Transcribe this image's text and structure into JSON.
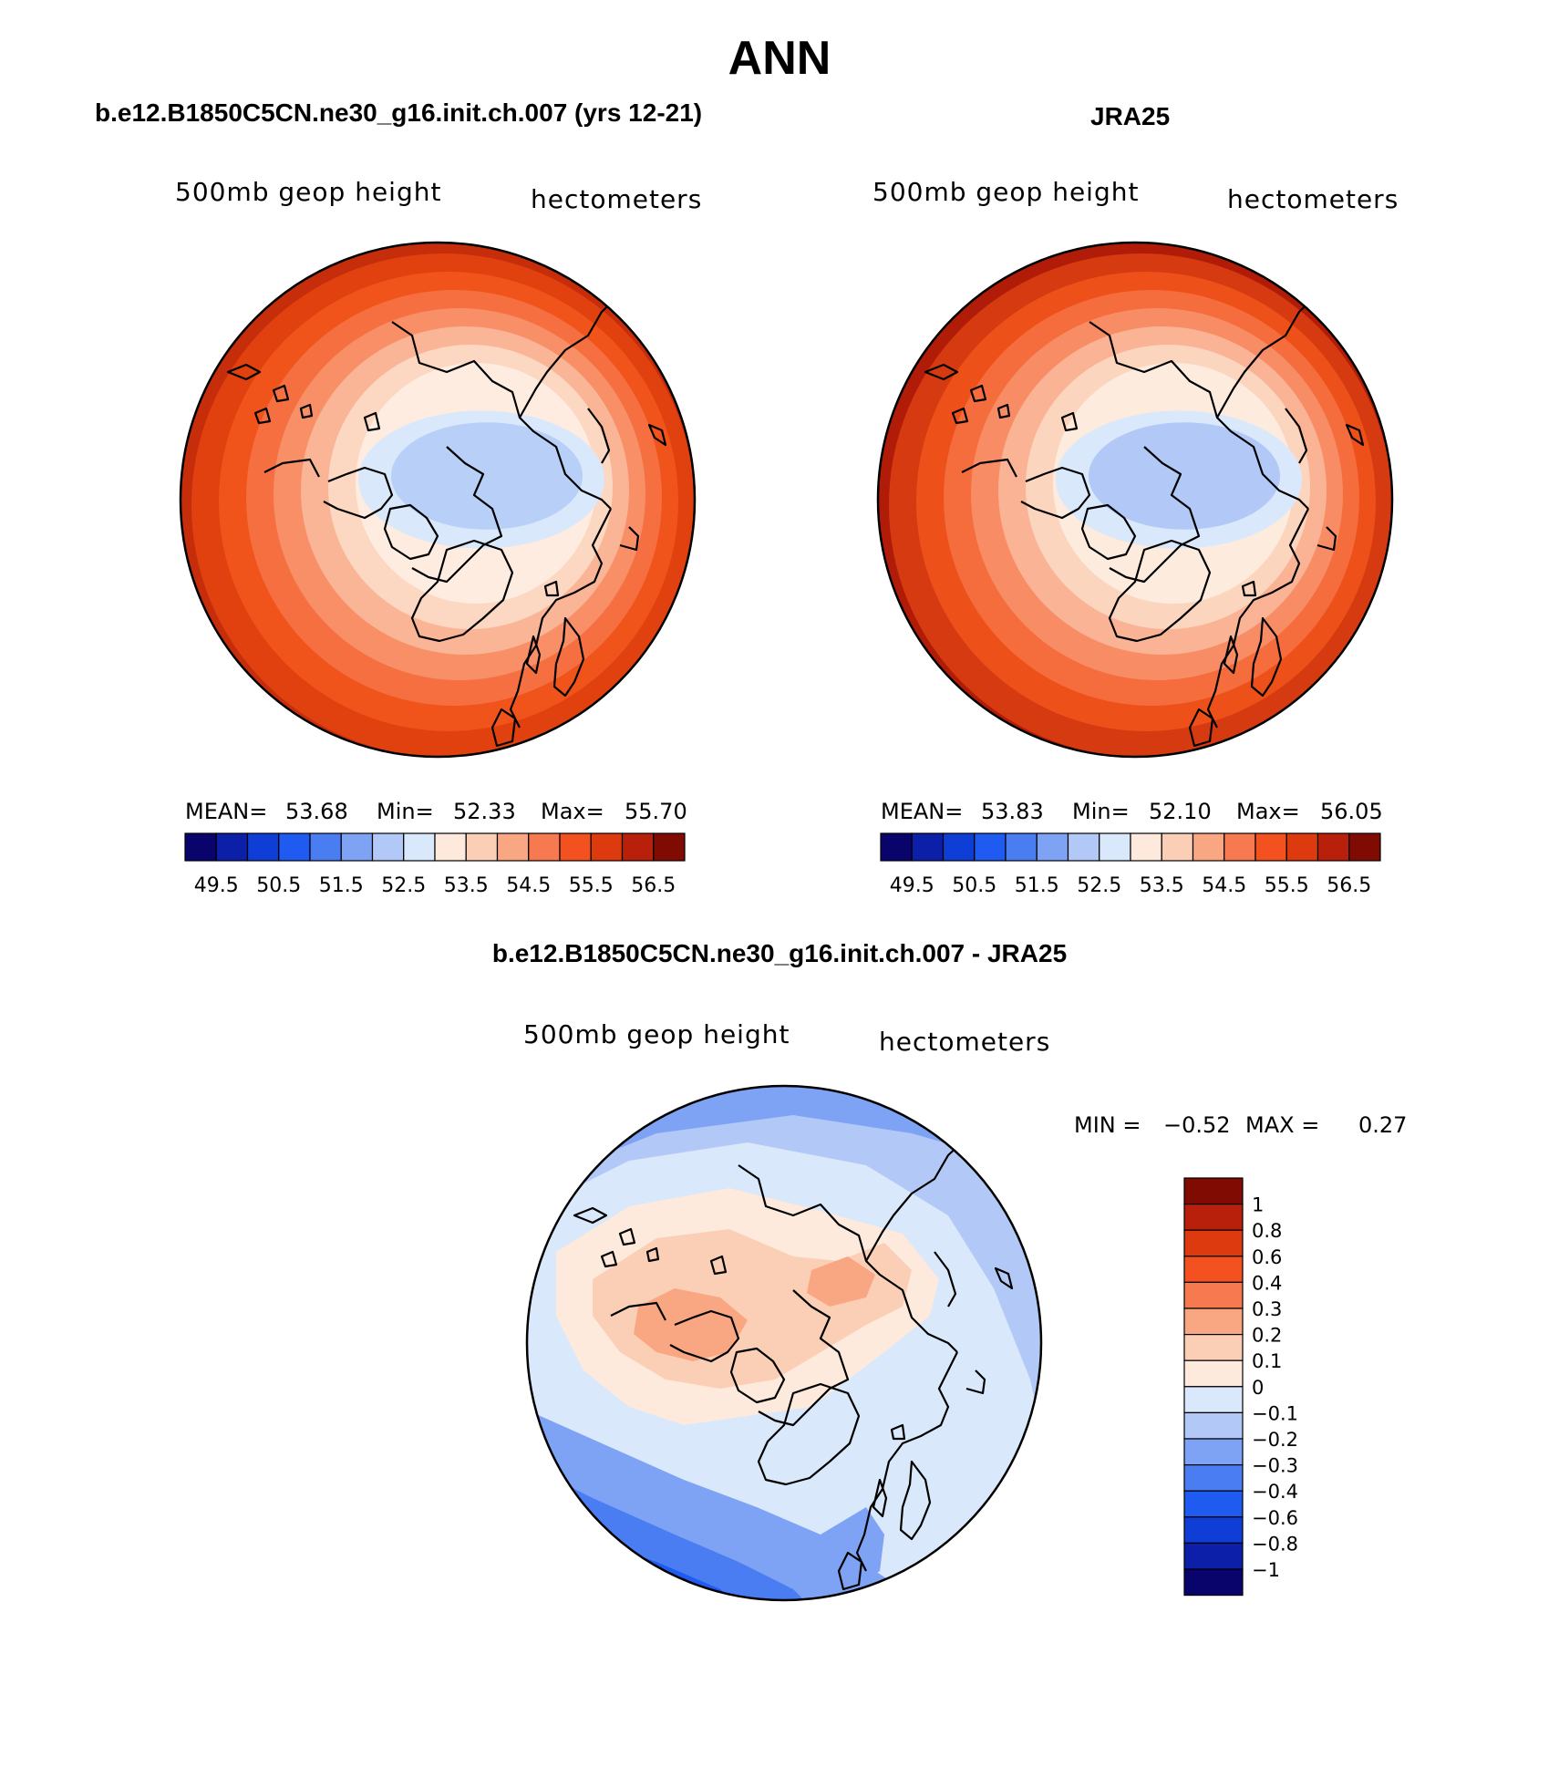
{
  "page": {
    "title": "ANN",
    "left_title": "b.e12.B1850C5CN.ne30_g16.init.ch.007 (yrs 12-21)",
    "right_title": "JRA25",
    "diff_title": "b.e12.B1850C5CN.ne30_g16.init.ch.007 - JRA25"
  },
  "panels": {
    "model": {
      "variable": "500mb geop height",
      "units": "hectometers",
      "mean_label": "MEAN=",
      "mean": "53.68",
      "min_label": "Min=",
      "min": "52.33",
      "max_label": "Max=",
      "max": "55.70"
    },
    "obs": {
      "variable": "500mb geop height",
      "units": "hectometers",
      "mean_label": "MEAN=",
      "mean": "53.83",
      "min_label": "Min=",
      "min": "52.10",
      "max_label": "Max=",
      "max": "56.05"
    },
    "diff": {
      "variable": "500mb geop height",
      "units": "hectometers",
      "min_label": "MIN =",
      "min": "−0.52",
      "max_label": "MAX =",
      "max": "0.27"
    }
  },
  "abs_colorbar": {
    "colors": [
      "#08046b",
      "#0b1fa8",
      "#0f3ed6",
      "#1f5bf0",
      "#4a7df2",
      "#7ea2f4",
      "#b2c8f7",
      "#d9e8fb",
      "#fdeadc",
      "#fbcfb6",
      "#f9a783",
      "#f7794f",
      "#f3511f",
      "#de3a10",
      "#b8200c",
      "#800b03"
    ],
    "labels": [
      "49.5",
      "50.5",
      "51.5",
      "52.5",
      "53.5",
      "54.5",
      "55.5",
      "56.5"
    ]
  },
  "diff_colorbar": {
    "colors_top_to_bottom": [
      "#800b03",
      "#b8200c",
      "#de3a10",
      "#f3511f",
      "#f7794f",
      "#f9a783",
      "#fbcfb6",
      "#fdeadc",
      "#d9e8fb",
      "#b2c8f7",
      "#7ea2f4",
      "#4a7df2",
      "#1f5bf0",
      "#0f3ed6",
      "#0b1fa8",
      "#08046b"
    ],
    "labels": [
      "1",
      "0.8",
      "0.6",
      "0.4",
      "0.3",
      "0.2",
      "0.1",
      "0",
      "−0.1",
      "−0.2",
      "−0.3",
      "−0.4",
      "−0.6",
      "−0.8",
      "−1"
    ]
  },
  "map_fill": {
    "model_rings": [
      "#c62d0b",
      "#e0410f",
      "#f0541b",
      "#f56f40",
      "#f88f67",
      "#fab597",
      "#fcd7c1",
      "#fdecdf",
      "#d9e8fb",
      "#b8cff7"
    ],
    "obs_rings": [
      "#b01c08",
      "#d63a10",
      "#ee5019",
      "#f56c3d",
      "#f88d65",
      "#fab395",
      "#fcd5bf",
      "#fdebdd",
      "#d9e8fb",
      "#b2c8f7"
    ],
    "diff_blue": "#b2c8f7",
    "diff_orange": "#fbcfb6"
  }
}
